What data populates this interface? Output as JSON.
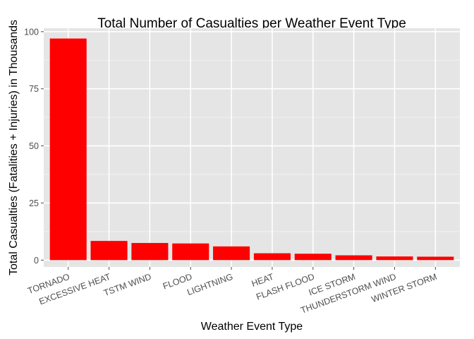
{
  "chart_data": {
    "type": "bar",
    "title": "Total Number of Casualties per Weather Event Type",
    "xlabel": "Weather Event Type",
    "ylabel": "Total Casualties (Fatalities + Injuries) in Thousands",
    "categories": [
      "TORNADO",
      "EXCESSIVE HEAT",
      "TSTM WIND",
      "FLOOD",
      "LIGHTNING",
      "HEAT",
      "FLASH FLOOD",
      "ICE STORM",
      "THUNDERSTORM WIND",
      "WINTER STORM"
    ],
    "values": [
      97.0,
      8.4,
      7.5,
      7.3,
      6.0,
      3.0,
      2.8,
      2.1,
      1.6,
      1.5
    ],
    "y_ticks": [
      "0",
      "25",
      "50",
      "75",
      "100"
    ],
    "ylim": [
      -3.0,
      101.5
    ],
    "grid": true,
    "legend": "none",
    "colors": {
      "bar": "#ff0000",
      "panel": "#e5e5e5",
      "grid_major": "#ffffff",
      "grid_minor": "#f2f2f2"
    }
  }
}
